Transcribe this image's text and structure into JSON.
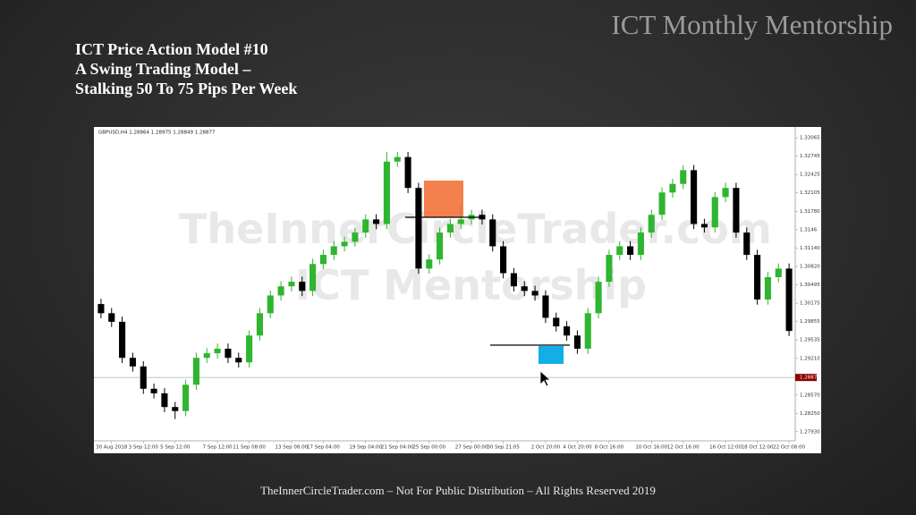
{
  "slide": {
    "brand": "ICT Monthly Mentorship",
    "title_lines": [
      "ICT Price Action Model #10",
      "A Swing Trading Model –",
      "Stalking 50 To 75 Pips Per Week"
    ],
    "footer": "TheInnerCircleTrader.com – Not For Public Distribution – All Rights Reserved 2019"
  },
  "chart_data": {
    "type": "candlestick",
    "symbol_label": "GBPUSD,H4 1.28864 1.28975 1.28849 1.28877",
    "watermark": [
      "TheInnerCircleTrader.com",
      "ICT Mentorship"
    ],
    "up_color": "#2fb52f",
    "down_color": "#000000",
    "open": [
      1.3016,
      1.3,
      1.2985,
      1.2922,
      1.2907,
      1.2868,
      1.286,
      1.2836,
      1.2829,
      1.2875,
      1.2922,
      1.293,
      1.2938,
      1.2922,
      1.2914,
      1.2961,
      1.3,
      1.3031,
      1.3047,
      1.3055,
      1.3039,
      1.3086,
      1.3102,
      1.3117,
      1.3125,
      1.3141,
      1.3164,
      1.3156,
      1.3265,
      1.3273,
      1.3219,
      1.3078,
      1.3094,
      1.3141,
      1.3156,
      1.3164,
      1.3172,
      1.3164,
      1.3117,
      1.307,
      1.3047,
      1.3039,
      1.3031,
      1.2992,
      1.2977,
      1.2961,
      1.2938,
      1.3,
      1.3055,
      1.3102,
      1.3117,
      1.3102,
      1.3141,
      1.3172,
      1.3211,
      1.3226,
      1.325,
      1.3156,
      1.315,
      1.3203,
      1.3219,
      1.3141,
      1.3102,
      1.3024,
      1.3063,
      1.3078
    ],
    "high": [
      1.3025,
      1.3009,
      1.2994,
      1.2931,
      1.2916,
      1.2877,
      1.2869,
      1.2845,
      1.2884,
      1.2931,
      1.2939,
      1.2947,
      1.2947,
      1.2931,
      1.297,
      1.3009,
      1.304,
      1.3056,
      1.3064,
      1.3064,
      1.3095,
      1.3111,
      1.3126,
      1.3134,
      1.315,
      1.3173,
      1.3173,
      1.3282,
      1.3282,
      1.3282,
      1.3228,
      1.3103,
      1.315,
      1.3165,
      1.319,
      1.3181,
      1.3181,
      1.3173,
      1.3126,
      1.3079,
      1.3056,
      1.3048,
      1.304,
      1.3001,
      1.2986,
      1.297,
      1.3009,
      1.3064,
      1.3111,
      1.3126,
      1.3126,
      1.315,
      1.3181,
      1.322,
      1.3235,
      1.3259,
      1.3259,
      1.3165,
      1.3212,
      1.3228,
      1.3228,
      1.315,
      1.3111,
      1.3072,
      1.3087,
      1.3087
    ],
    "low": [
      1.2991,
      1.2976,
      1.2913,
      1.2898,
      1.2859,
      1.2851,
      1.2827,
      1.2815,
      1.282,
      1.2866,
      1.2913,
      1.2921,
      1.2913,
      1.2905,
      1.2905,
      1.2952,
      1.2991,
      1.3022,
      1.3038,
      1.303,
      1.303,
      1.3077,
      1.3093,
      1.3108,
      1.3116,
      1.3132,
      1.3147,
      1.3147,
      1.3256,
      1.321,
      1.3069,
      1.3069,
      1.3085,
      1.3132,
      1.3147,
      1.3155,
      1.3155,
      1.3108,
      1.3061,
      1.3038,
      1.303,
      1.3022,
      1.2983,
      1.2968,
      1.2952,
      1.2929,
      1.2929,
      1.2991,
      1.3046,
      1.3093,
      1.3093,
      1.3093,
      1.3132,
      1.3163,
      1.3202,
      1.3217,
      1.3147,
      1.3141,
      1.3141,
      1.3194,
      1.3132,
      1.3093,
      1.3015,
      1.3015,
      1.3054,
      1.296
    ],
    "close": [
      1.3,
      1.2985,
      1.2922,
      1.2907,
      1.2868,
      1.286,
      1.2836,
      1.2829,
      1.2875,
      1.2922,
      1.293,
      1.2938,
      1.2922,
      1.2914,
      1.2961,
      1.3,
      1.3031,
      1.3047,
      1.3055,
      1.3039,
      1.3086,
      1.3102,
      1.3117,
      1.3125,
      1.3141,
      1.3164,
      1.3156,
      1.3265,
      1.3273,
      1.3219,
      1.3078,
      1.3094,
      1.3141,
      1.3156,
      1.3164,
      1.3172,
      1.3164,
      1.3117,
      1.307,
      1.3047,
      1.3039,
      1.3031,
      1.2992,
      1.2977,
      1.2961,
      1.2938,
      1.3,
      1.3055,
      1.3102,
      1.3117,
      1.3102,
      1.3141,
      1.3172,
      1.3211,
      1.3226,
      1.325,
      1.3156,
      1.315,
      1.3203,
      1.3219,
      1.3141,
      1.3102,
      1.3024,
      1.3063,
      1.3078,
      1.2969
    ],
    "ylim": [
      1.2777,
      1.3324
    ],
    "yticks": [
      1.33065,
      1.32745,
      1.32425,
      1.32105,
      {
        "value": 1.3178,
        "label": "1.31780"
      },
      1.3146,
      {
        "value": 1.3114,
        "label": "1.31140"
      },
      {
        "value": 1.3082,
        "label": "1.30820"
      },
      1.30495,
      1.30175,
      1.29855,
      1.29535,
      {
        "value": 1.2921,
        "label": "1.29210"
      },
      {
        "value": 1.2857,
        "label": "1.28570"
      },
      {
        "value": 1.2825,
        "label": "1.28250"
      },
      {
        "value": 1.2793,
        "label": "1.27930"
      }
    ],
    "current_price": 1.28877,
    "xticks": [
      {
        "value": 1,
        "label": "30 Aug 2018"
      },
      {
        "value": 4,
        "label": "3 Sep 12:00"
      },
      {
        "value": 7,
        "label": "5 Sep 12:00"
      },
      {
        "value": 11,
        "label": "7 Sep 12:00"
      },
      {
        "value": 14,
        "label": "11 Sep 08:00"
      },
      {
        "value": 18,
        "label": "13 Sep 08:00"
      },
      {
        "value": 21,
        "label": "17 Sep 04:00"
      },
      {
        "value": 25,
        "label": "19 Sep 04:00"
      },
      {
        "value": 28,
        "label": "21 Sep 04:00"
      },
      {
        "value": 31,
        "label": "25 Sep 00:00"
      },
      {
        "value": 35,
        "label": "27 Sep 00:00"
      },
      {
        "value": 38,
        "label": "30 Sep 21:05"
      },
      {
        "value": 42,
        "label": "2 Oct 20:00"
      },
      {
        "value": 45,
        "label": "4 Oct 20:00"
      },
      {
        "value": 48,
        "label": "8 Oct 16:00"
      },
      {
        "value": 52,
        "label": "10 Oct 16:00"
      },
      {
        "value": 55,
        "label": "12 Oct 16:00"
      },
      {
        "value": 59,
        "label": "16 Oct 12:00"
      },
      {
        "value": 62,
        "label": "18 Oct 12:00"
      },
      {
        "value": 65,
        "label": "22 Oct 08:00"
      }
    ]
  }
}
